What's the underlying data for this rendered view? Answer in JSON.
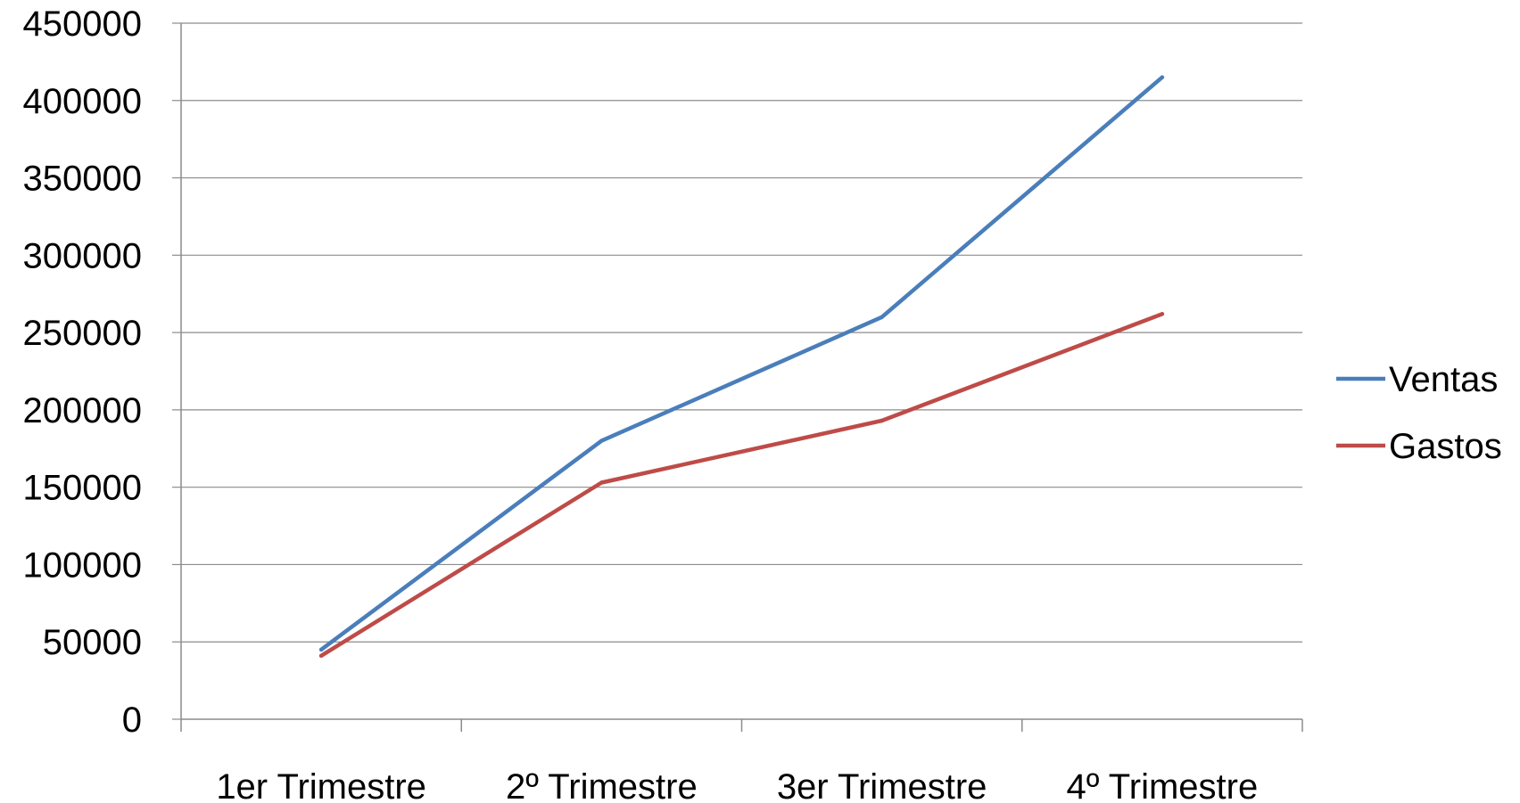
{
  "chart_data": {
    "type": "line",
    "title": "",
    "xlabel": "",
    "ylabel": "",
    "categories": [
      "1er Trimestre",
      "2º Trimestre",
      "3er Trimestre",
      "4º Trimestre"
    ],
    "ylim": [
      0,
      450000
    ],
    "yticks": [
      0,
      50000,
      100000,
      150000,
      200000,
      250000,
      300000,
      350000,
      400000,
      450000
    ],
    "grid": true,
    "legend_position": "right",
    "series": [
      {
        "name": "Ventas",
        "color": "#4a7ebb",
        "values": [
          45000,
          180000,
          260000,
          415000
        ]
      },
      {
        "name": "Gastos",
        "color": "#be4b48",
        "values": [
          41000,
          153000,
          193000,
          262000
        ]
      }
    ]
  }
}
